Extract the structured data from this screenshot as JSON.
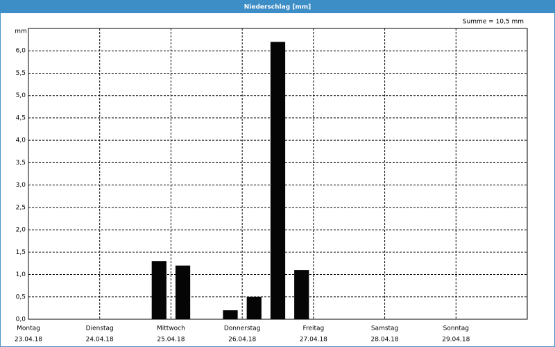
{
  "chart_data": {
    "type": "bar",
    "title": "Niederschlag [mm]",
    "y_label": "mm",
    "annotation": "Summe = 10,5 mm",
    "categories": [
      null,
      null,
      null,
      null,
      null,
      null,
      null,
      null,
      null,
      null,
      null,
      null,
      null,
      null,
      null,
      null,
      null,
      null,
      null,
      null,
      null
    ],
    "values": [
      0,
      0,
      0,
      0,
      0,
      1.3,
      1.2,
      0,
      0.2,
      0.5,
      6.2,
      1.1,
      0,
      0,
      0,
      0,
      0,
      0,
      0,
      0,
      0
    ],
    "color": "#050505",
    "xlim": [
      0,
      21
    ],
    "xticks": [
      {
        "value": 0,
        "label": "Montag"
      },
      {
        "value": 3,
        "label": "Dienstag"
      },
      {
        "value": 6,
        "label": "Mittwoch"
      },
      {
        "value": 9,
        "label": "Donnerstag"
      },
      {
        "value": 12,
        "label": "Freitag"
      },
      {
        "value": 15,
        "label": "Samstag"
      },
      {
        "value": 18,
        "label": "Sonntag"
      }
    ],
    "xtick_dates": [
      "23.04.18",
      "24.04.18",
      "25.04.18",
      "26.04.18",
      "27.04.18",
      "28.04.18",
      "29.04.18"
    ],
    "ylim": [
      0,
      6.5
    ],
    "yticks": [
      {
        "value": 0,
        "label": "0,0"
      },
      {
        "value": 0.5,
        "label": "0,5"
      },
      {
        "value": 1,
        "label": "1,0"
      },
      {
        "value": 1.5,
        "label": "1,5"
      },
      {
        "value": 2,
        "label": "2,0"
      },
      {
        "value": 2.5,
        "label": "2,5"
      },
      {
        "value": 3,
        "label": "3,0"
      },
      {
        "value": 3.5,
        "label": "3,5"
      },
      {
        "value": 4,
        "label": "4,0"
      },
      {
        "value": 4.5,
        "label": "4,5"
      },
      {
        "value": 5,
        "label": "5,0"
      },
      {
        "value": 5.5,
        "label": "5,5"
      },
      {
        "value": 6,
        "label": "6,0"
      }
    ],
    "grid": true
  }
}
